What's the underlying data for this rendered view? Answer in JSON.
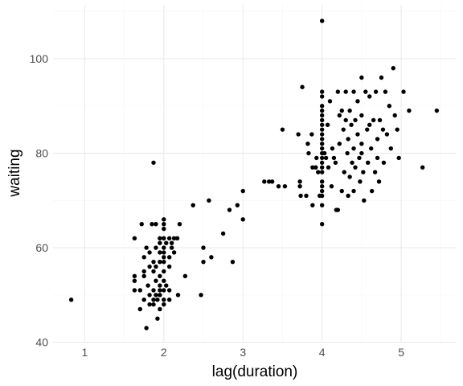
{
  "chart_data": {
    "type": "scatter",
    "xlabel": "lag(duration)",
    "ylabel": "waiting",
    "xlim": [
      0.6,
      5.7
    ],
    "ylim": [
      40.1,
      111.4
    ],
    "x_ticks": [
      1,
      2,
      3,
      4,
      5
    ],
    "x_minor_ticks": [
      1.5,
      2.5,
      3.5,
      4.5,
      5.5
    ],
    "y_ticks": [
      40,
      60,
      80,
      100
    ],
    "y_minor_ticks": [
      50,
      70,
      90,
      110
    ],
    "grid": true,
    "point_color": "#000000",
    "grid_major_color": "#ebebeb",
    "grid_minor_color": "#f5f5f5",
    "points": [
      {
        "x": 0.83,
        "y": 49
      },
      {
        "x": 1.63,
        "y": 62
      },
      {
        "x": 1.63,
        "y": 54
      },
      {
        "x": 1.63,
        "y": 53
      },
      {
        "x": 1.63,
        "y": 51
      },
      {
        "x": 1.7,
        "y": 47
      },
      {
        "x": 1.7,
        "y": 51
      },
      {
        "x": 1.72,
        "y": 65
      },
      {
        "x": 1.75,
        "y": 58
      },
      {
        "x": 1.75,
        "y": 55
      },
      {
        "x": 1.75,
        "y": 54
      },
      {
        "x": 1.75,
        "y": 49
      },
      {
        "x": 1.78,
        "y": 43
      },
      {
        "x": 1.78,
        "y": 60
      },
      {
        "x": 1.8,
        "y": 52
      },
      {
        "x": 1.82,
        "y": 59
      },
      {
        "x": 1.82,
        "y": 56
      },
      {
        "x": 1.82,
        "y": 48
      },
      {
        "x": 1.82,
        "y": 50
      },
      {
        "x": 1.85,
        "y": 65
      },
      {
        "x": 1.87,
        "y": 78
      },
      {
        "x": 1.87,
        "y": 57
      },
      {
        "x": 1.87,
        "y": 55
      },
      {
        "x": 1.87,
        "y": 51
      },
      {
        "x": 1.87,
        "y": 49
      },
      {
        "x": 1.87,
        "y": 48
      },
      {
        "x": 1.9,
        "y": 65
      },
      {
        "x": 1.9,
        "y": 60
      },
      {
        "x": 1.9,
        "y": 56
      },
      {
        "x": 1.9,
        "y": 53
      },
      {
        "x": 1.9,
        "y": 50
      },
      {
        "x": 1.92,
        "y": 49
      },
      {
        "x": 1.92,
        "y": 45
      },
      {
        "x": 1.95,
        "y": 62
      },
      {
        "x": 1.95,
        "y": 61
      },
      {
        "x": 1.95,
        "y": 59
      },
      {
        "x": 1.95,
        "y": 57
      },
      {
        "x": 1.95,
        "y": 54
      },
      {
        "x": 1.95,
        "y": 52
      },
      {
        "x": 1.95,
        "y": 51
      },
      {
        "x": 1.95,
        "y": 50
      },
      {
        "x": 1.95,
        "y": 47
      },
      {
        "x": 2.0,
        "y": 66
      },
      {
        "x": 2.0,
        "y": 65
      },
      {
        "x": 2.0,
        "y": 64
      },
      {
        "x": 2.0,
        "y": 62
      },
      {
        "x": 2.0,
        "y": 60
      },
      {
        "x": 2.0,
        "y": 59
      },
      {
        "x": 2.0,
        "y": 58
      },
      {
        "x": 2.0,
        "y": 57
      },
      {
        "x": 2.0,
        "y": 55
      },
      {
        "x": 2.0,
        "y": 53
      },
      {
        "x": 2.0,
        "y": 51
      },
      {
        "x": 2.0,
        "y": 49
      },
      {
        "x": 2.0,
        "y": 48
      },
      {
        "x": 2.03,
        "y": 61
      },
      {
        "x": 2.03,
        "y": 52
      },
      {
        "x": 2.07,
        "y": 62
      },
      {
        "x": 2.07,
        "y": 58
      },
      {
        "x": 2.07,
        "y": 56
      },
      {
        "x": 2.07,
        "y": 51
      },
      {
        "x": 2.07,
        "y": 49
      },
      {
        "x": 2.1,
        "y": 61
      },
      {
        "x": 2.1,
        "y": 60
      },
      {
        "x": 2.13,
        "y": 62
      },
      {
        "x": 2.13,
        "y": 59
      },
      {
        "x": 2.17,
        "y": 62
      },
      {
        "x": 2.18,
        "y": 50
      },
      {
        "x": 2.2,
        "y": 65
      },
      {
        "x": 2.27,
        "y": 54
      },
      {
        "x": 2.37,
        "y": 69
      },
      {
        "x": 2.47,
        "y": 50
      },
      {
        "x": 2.5,
        "y": 60
      },
      {
        "x": 2.5,
        "y": 57
      },
      {
        "x": 2.57,
        "y": 70
      },
      {
        "x": 2.6,
        "y": 58
      },
      {
        "x": 2.75,
        "y": 63
      },
      {
        "x": 2.83,
        "y": 68
      },
      {
        "x": 2.87,
        "y": 57
      },
      {
        "x": 2.93,
        "y": 69
      },
      {
        "x": 3.0,
        "y": 72
      },
      {
        "x": 3.0,
        "y": 66
      },
      {
        "x": 3.27,
        "y": 74
      },
      {
        "x": 3.33,
        "y": 74
      },
      {
        "x": 3.37,
        "y": 74
      },
      {
        "x": 3.45,
        "y": 73
      },
      {
        "x": 3.5,
        "y": 85
      },
      {
        "x": 3.53,
        "y": 73
      },
      {
        "x": 3.7,
        "y": 84
      },
      {
        "x": 3.72,
        "y": 73
      },
      {
        "x": 3.72,
        "y": 74
      },
      {
        "x": 3.73,
        "y": 71
      },
      {
        "x": 3.75,
        "y": 94
      },
      {
        "x": 3.8,
        "y": 71
      },
      {
        "x": 3.82,
        "y": 82
      },
      {
        "x": 3.83,
        "y": 80
      },
      {
        "x": 3.87,
        "y": 84
      },
      {
        "x": 3.88,
        "y": 69
      },
      {
        "x": 3.88,
        "y": 77
      },
      {
        "x": 3.92,
        "y": 77
      },
      {
        "x": 3.93,
        "y": 79
      },
      {
        "x": 3.95,
        "y": 76
      },
      {
        "x": 3.97,
        "y": 71
      },
      {
        "x": 4.0,
        "y": 108
      },
      {
        "x": 4.0,
        "y": 93
      },
      {
        "x": 4.0,
        "y": 92
      },
      {
        "x": 4.0,
        "y": 90
      },
      {
        "x": 4.0,
        "y": 89
      },
      {
        "x": 4.0,
        "y": 88
      },
      {
        "x": 4.0,
        "y": 87
      },
      {
        "x": 4.0,
        "y": 86
      },
      {
        "x": 4.0,
        "y": 85
      },
      {
        "x": 4.0,
        "y": 84
      },
      {
        "x": 4.0,
        "y": 83
      },
      {
        "x": 4.0,
        "y": 82
      },
      {
        "x": 4.0,
        "y": 81
      },
      {
        "x": 4.0,
        "y": 80
      },
      {
        "x": 4.0,
        "y": 79
      },
      {
        "x": 4.0,
        "y": 78
      },
      {
        "x": 4.0,
        "y": 77
      },
      {
        "x": 4.0,
        "y": 76
      },
      {
        "x": 4.0,
        "y": 74
      },
      {
        "x": 4.0,
        "y": 73
      },
      {
        "x": 4.0,
        "y": 72
      },
      {
        "x": 4.0,
        "y": 71
      },
      {
        "x": 4.0,
        "y": 69
      },
      {
        "x": 4.0,
        "y": 65
      },
      {
        "x": 4.03,
        "y": 80
      },
      {
        "x": 4.05,
        "y": 79
      },
      {
        "x": 4.07,
        "y": 86
      },
      {
        "x": 4.08,
        "y": 77
      },
      {
        "x": 4.1,
        "y": 91
      },
      {
        "x": 4.12,
        "y": 73
      },
      {
        "x": 4.13,
        "y": 81
      },
      {
        "x": 4.15,
        "y": 79
      },
      {
        "x": 4.17,
        "y": 78
      },
      {
        "x": 4.18,
        "y": 68
      },
      {
        "x": 4.2,
        "y": 68
      },
      {
        "x": 4.2,
        "y": 93
      },
      {
        "x": 4.22,
        "y": 88
      },
      {
        "x": 4.22,
        "y": 82
      },
      {
        "x": 4.25,
        "y": 89
      },
      {
        "x": 4.25,
        "y": 72
      },
      {
        "x": 4.27,
        "y": 85
      },
      {
        "x": 4.28,
        "y": 76
      },
      {
        "x": 4.3,
        "y": 93
      },
      {
        "x": 4.3,
        "y": 87
      },
      {
        "x": 4.32,
        "y": 80
      },
      {
        "x": 4.33,
        "y": 83
      },
      {
        "x": 4.33,
        "y": 71
      },
      {
        "x": 4.35,
        "y": 89
      },
      {
        "x": 4.35,
        "y": 75
      },
      {
        "x": 4.37,
        "y": 86
      },
      {
        "x": 4.38,
        "y": 78
      },
      {
        "x": 4.4,
        "y": 93
      },
      {
        "x": 4.4,
        "y": 81
      },
      {
        "x": 4.4,
        "y": 72
      },
      {
        "x": 4.42,
        "y": 87
      },
      {
        "x": 4.42,
        "y": 77
      },
      {
        "x": 4.45,
        "y": 91
      },
      {
        "x": 4.45,
        "y": 84
      },
      {
        "x": 4.47,
        "y": 79
      },
      {
        "x": 4.48,
        "y": 74
      },
      {
        "x": 4.5,
        "y": 96
      },
      {
        "x": 4.5,
        "y": 88
      },
      {
        "x": 4.5,
        "y": 82
      },
      {
        "x": 4.5,
        "y": 80
      },
      {
        "x": 4.52,
        "y": 76
      },
      {
        "x": 4.53,
        "y": 70
      },
      {
        "x": 4.55,
        "y": 93
      },
      {
        "x": 4.57,
        "y": 85
      },
      {
        "x": 4.58,
        "y": 78
      },
      {
        "x": 4.6,
        "y": 86
      },
      {
        "x": 4.6,
        "y": 92
      },
      {
        "x": 4.62,
        "y": 81
      },
      {
        "x": 4.63,
        "y": 72
      },
      {
        "x": 4.65,
        "y": 87
      },
      {
        "x": 4.67,
        "y": 76
      },
      {
        "x": 4.68,
        "y": 93
      },
      {
        "x": 4.7,
        "y": 83
      },
      {
        "x": 4.7,
        "y": 79
      },
      {
        "x": 4.72,
        "y": 74
      },
      {
        "x": 4.73,
        "y": 87
      },
      {
        "x": 4.75,
        "y": 96
      },
      {
        "x": 4.77,
        "y": 85
      },
      {
        "x": 4.78,
        "y": 78
      },
      {
        "x": 4.8,
        "y": 93
      },
      {
        "x": 4.82,
        "y": 84
      },
      {
        "x": 4.85,
        "y": 90
      },
      {
        "x": 4.87,
        "y": 81
      },
      {
        "x": 4.9,
        "y": 98
      },
      {
        "x": 4.92,
        "y": 88
      },
      {
        "x": 4.95,
        "y": 85
      },
      {
        "x": 4.97,
        "y": 79
      },
      {
        "x": 5.03,
        "y": 93
      },
      {
        "x": 5.1,
        "y": 89
      },
      {
        "x": 5.27,
        "y": 77
      },
      {
        "x": 5.45,
        "y": 89
      }
    ]
  }
}
